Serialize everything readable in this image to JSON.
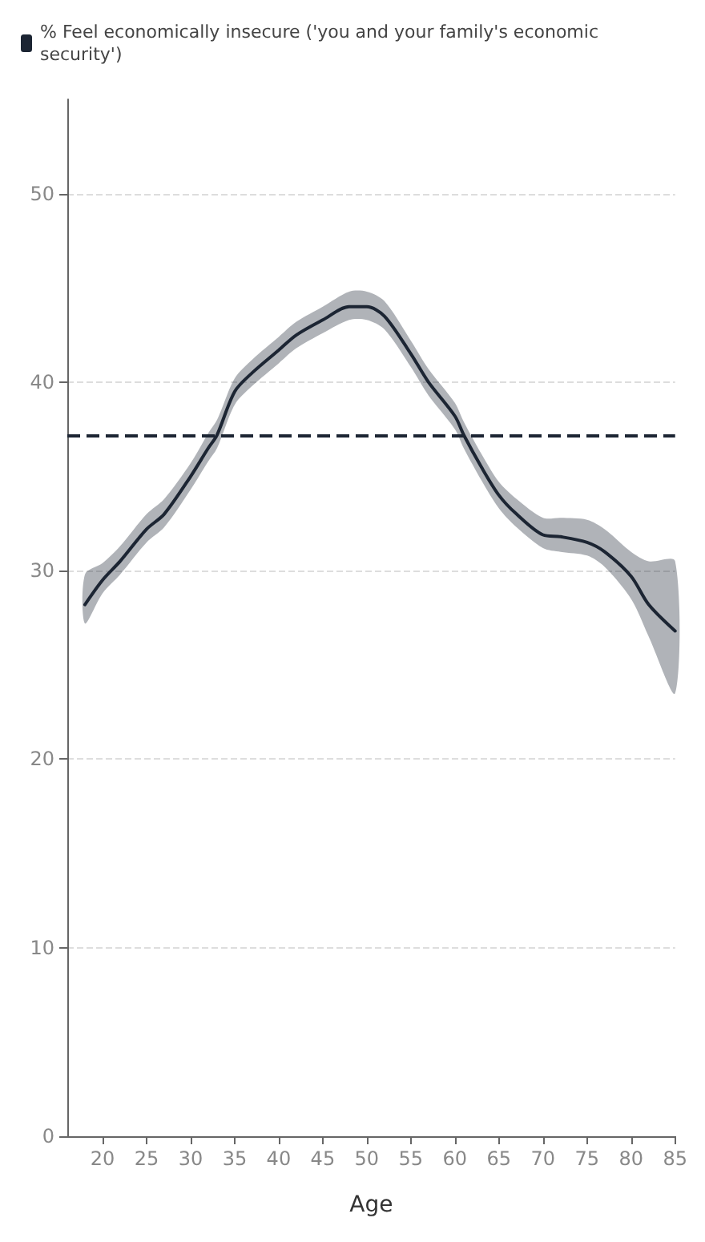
{
  "chart_data": {
    "type": "line",
    "xlabel": "Age",
    "legend": "top left",
    "grid": "y",
    "marker": "none",
    "line_style": "solid",
    "x": [
      18,
      20,
      22,
      25,
      27,
      30,
      32,
      33,
      35,
      37,
      40,
      42,
      45,
      48,
      50,
      52,
      55,
      57,
      60,
      61,
      63,
      65,
      67,
      70,
      72,
      75,
      77,
      80,
      82,
      85
    ],
    "series": [
      {
        "name": "% Feel economically insecure ('you and your family's economic security')",
        "color": "#1c2533",
        "values": [
          28.2,
          29.5,
          30.5,
          32.2,
          33,
          35,
          36.5,
          37.2,
          39.5,
          40.5,
          41.7,
          42.5,
          43.3,
          44,
          44,
          43.5,
          41.5,
          40,
          38.2,
          37.2,
          35.5,
          34,
          33,
          31.9,
          31.8,
          31.5,
          31,
          29.7,
          28.2,
          26.8
        ],
        "lower": [
          27.2,
          28.8,
          29.8,
          31.5,
          32.3,
          34.3,
          35.8,
          36.5,
          38.8,
          39.8,
          41,
          41.8,
          42.6,
          43.3,
          43.3,
          42.8,
          40.8,
          39.3,
          37.5,
          36.5,
          34.8,
          33.3,
          32.3,
          31.2,
          31,
          30.8,
          30.2,
          28.5,
          26.5,
          23.5
        ],
        "upper": [
          29.8,
          30.4,
          31.3,
          33,
          33.8,
          35.7,
          37.3,
          38,
          40.2,
          41.2,
          42.4,
          43.2,
          44,
          44.8,
          44.8,
          44.3,
          42.2,
          40.7,
          38.9,
          37.9,
          36.2,
          34.7,
          33.8,
          32.8,
          32.8,
          32.7,
          32.2,
          31,
          30.5,
          30.5
        ]
      }
    ],
    "ref_lines": [
      {
        "axis": "y",
        "value": 37.2,
        "color": "#1c2533",
        "line_style": "dashed"
      }
    ],
    "xlim": [
      16,
      85
    ],
    "xticks": [
      20,
      25,
      30,
      35,
      40,
      45,
      50,
      55,
      60,
      65,
      70,
      75,
      80,
      85
    ],
    "ylim": [
      0,
      55
    ],
    "yticks": [
      0,
      10,
      20,
      30,
      40,
      50
    ]
  }
}
